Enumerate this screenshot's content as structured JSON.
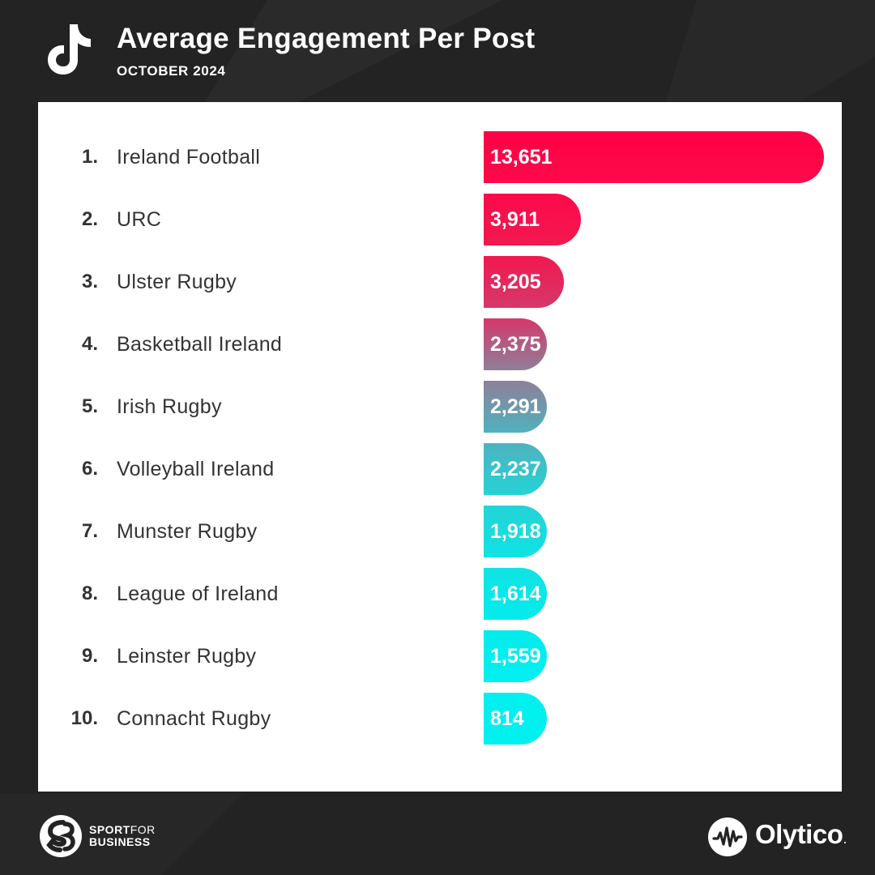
{
  "header": {
    "title": "Average Engagement Per Post",
    "subtitle": "OCTOBER 2024",
    "icon": "tiktok-icon"
  },
  "chart_data": {
    "type": "bar",
    "orientation": "horizontal",
    "title": "Average Engagement Per Post",
    "subtitle": "OCTOBER 2024",
    "ranks": [
      "1.",
      "2.",
      "3.",
      "4.",
      "5.",
      "6.",
      "7.",
      "8.",
      "9.",
      "10."
    ],
    "categories": [
      "Ireland Football",
      "URC",
      "Ulster Rugby",
      "Basketball Ireland",
      "Irish Rugby",
      "Volleyball Ireland",
      "Munster Rugby",
      "League of Ireland",
      "Leinster Rugby",
      "Connacht Rugby"
    ],
    "values": [
      13651,
      3911,
      3205,
      2375,
      2291,
      2237,
      1918,
      1614,
      1559,
      814
    ],
    "value_labels": [
      "13,651",
      "3,911",
      "3,205",
      "2,375",
      "2,291",
      "2,237",
      "1,918",
      "1,614",
      "1,559",
      "814"
    ],
    "colors": [
      "#ff0045",
      "#fe0a4a",
      "#f21850",
      "#d5386a",
      "#8f7f99",
      "#4fb2be",
      "#23d3d6",
      "#10e3e4",
      "#04ebec",
      "#00f0f0"
    ],
    "xlim": [
      0,
      13651
    ],
    "grid": false,
    "legend": "none"
  },
  "footer": {
    "left_logo": {
      "icon": "sport-for-business-logo-icon",
      "line1_bold": "SPORT",
      "line1_thin": "FOR",
      "line2": "BUSINESS"
    },
    "right_logo": {
      "icon": "olytico-logo-icon",
      "name": "Olytico",
      "mark": "."
    }
  }
}
